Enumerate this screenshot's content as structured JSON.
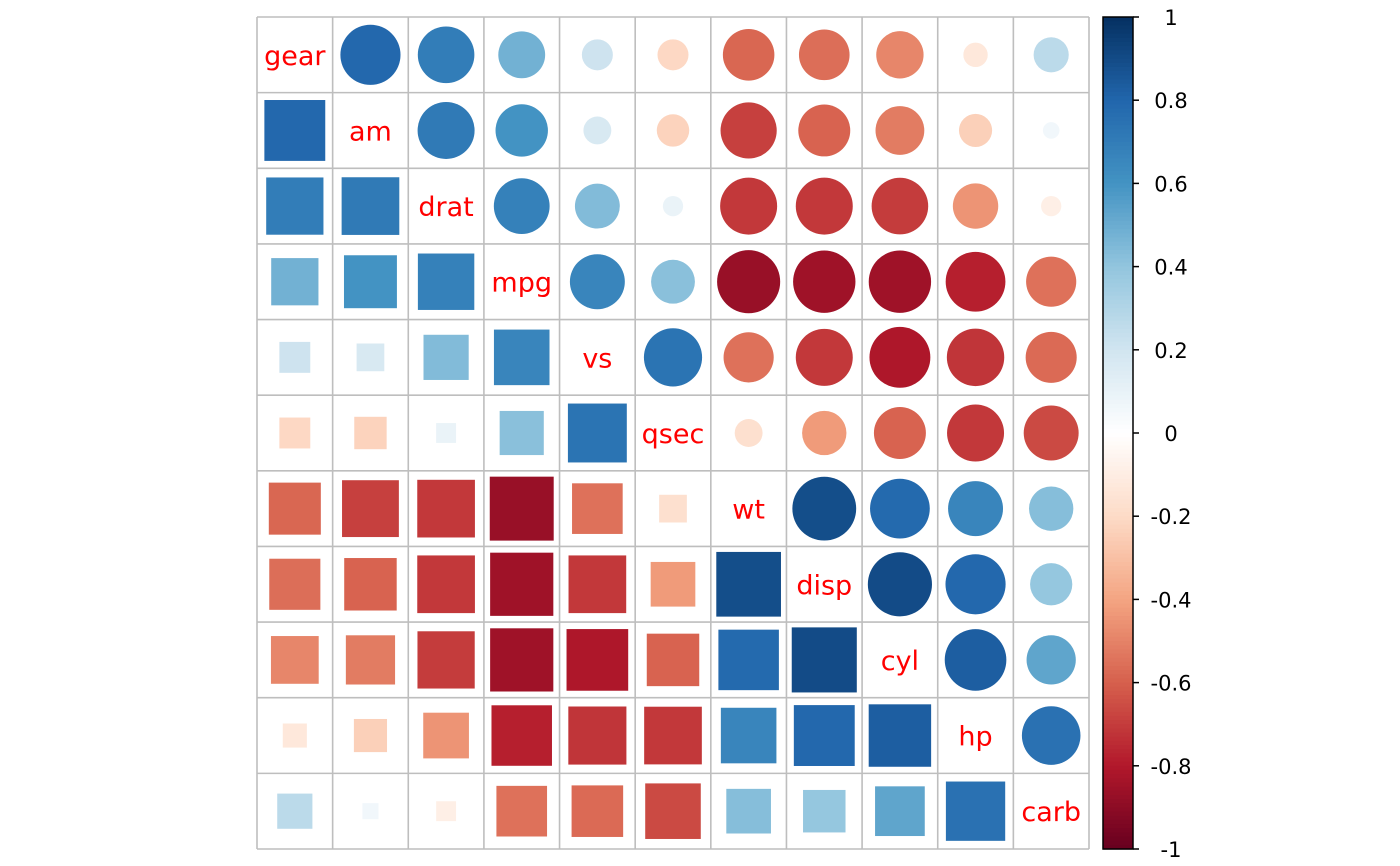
{
  "chart_data": {
    "type": "heatmap",
    "style": "corrplot mixed: upper triangle circles, lower triangle squares, variable names on diagonal",
    "variables": [
      "gear",
      "am",
      "drat",
      "mpg",
      "vs",
      "qsec",
      "wt",
      "disp",
      "cyl",
      "hp",
      "carb"
    ],
    "matrix": [
      [
        1,
        0.79,
        0.7,
        0.48,
        0.21,
        -0.21,
        -0.58,
        -0.56,
        -0.49,
        -0.13,
        0.27
      ],
      [
        0.79,
        1,
        0.71,
        0.6,
        0.17,
        -0.23,
        -0.69,
        -0.59,
        -0.52,
        -0.24,
        0.06
      ],
      [
        0.7,
        0.71,
        1,
        0.68,
        0.44,
        0.09,
        -0.71,
        -0.71,
        -0.7,
        -0.45,
        -0.09
      ],
      [
        0.48,
        0.6,
        0.68,
        1,
        0.66,
        0.42,
        -0.87,
        -0.85,
        -0.85,
        -0.78,
        -0.55
      ],
      [
        0.21,
        0.17,
        0.44,
        0.66,
        1,
        0.74,
        -0.55,
        -0.71,
        -0.81,
        -0.72,
        -0.57
      ],
      [
        -0.21,
        -0.23,
        0.09,
        0.42,
        0.74,
        1,
        -0.17,
        -0.43,
        -0.59,
        -0.71,
        -0.66
      ],
      [
        -0.58,
        -0.69,
        -0.71,
        -0.87,
        -0.55,
        -0.17,
        1,
        0.89,
        0.78,
        0.66,
        0.43
      ],
      [
        -0.56,
        -0.59,
        -0.71,
        -0.85,
        -0.71,
        -0.43,
        0.89,
        1,
        0.9,
        0.79,
        0.39
      ],
      [
        -0.49,
        -0.52,
        -0.7,
        -0.85,
        -0.81,
        -0.59,
        0.78,
        0.9,
        1,
        0.83,
        0.53
      ],
      [
        -0.13,
        -0.24,
        -0.45,
        -0.78,
        -0.72,
        -0.71,
        0.66,
        0.79,
        0.83,
        1,
        0.75
      ],
      [
        0.27,
        0.06,
        -0.09,
        -0.55,
        -0.57,
        -0.66,
        0.43,
        0.39,
        0.53,
        0.75,
        1
      ]
    ],
    "colorbar": {
      "range": [
        -1,
        1
      ],
      "ticks": [
        1,
        0.8,
        0.6,
        0.4,
        0.2,
        0,
        -0.2,
        -0.4,
        -0.6,
        -0.8,
        -1
      ],
      "tick_labels": [
        "1",
        "0.8",
        "0.6",
        "0.4",
        "0.2",
        "0",
        "-0.2",
        "-0.4",
        "-0.6",
        "-0.8",
        "-1"
      ],
      "placement": "right"
    },
    "colors": {
      "palette": [
        "#67001F",
        "#B2182B",
        "#D6604D",
        "#F4A582",
        "#FDDBC7",
        "#FFFFFF",
        "#D1E5F0",
        "#92C5DE",
        "#4393C3",
        "#2166AC",
        "#053061"
      ],
      "label_color": "#FF0000",
      "grid_color": "#BEBEBE"
    },
    "title": "",
    "xlabel": "",
    "ylabel": ""
  }
}
